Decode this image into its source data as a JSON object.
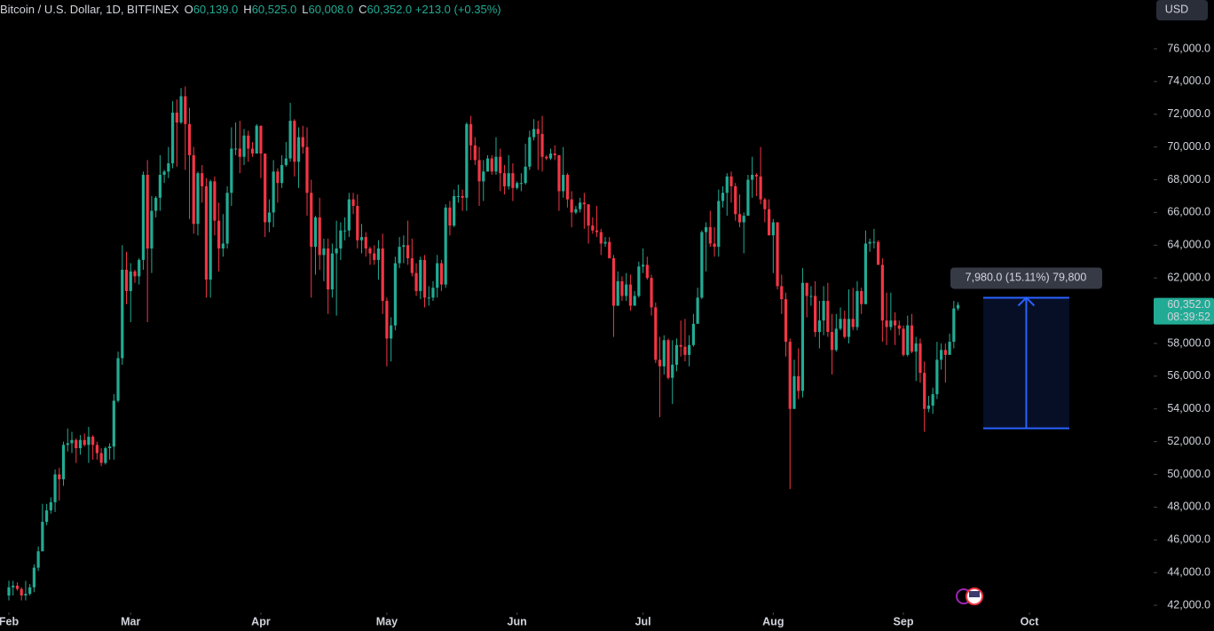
{
  "header": {
    "symbol": "Bitcoin / U.S. Dollar, 1D, BITFINEX",
    "fields": [
      {
        "key": "O",
        "value": "60,139.0"
      },
      {
        "key": "H",
        "value": "60,525.0"
      },
      {
        "key": "L",
        "value": "60,008.0"
      },
      {
        "key": "C",
        "value": "60,352.0"
      }
    ],
    "change": "+213.0 (+0.35%)",
    "currency": "USD"
  },
  "chart_data": {
    "type": "candlestick",
    "up_color": "#22ab94",
    "down_color": "#f23645",
    "ylim": [
      41570,
      78980
    ],
    "yticks": [
      {
        "value": 42000,
        "label": "42,000.0"
      },
      {
        "value": 44000,
        "label": "44,000.0"
      },
      {
        "value": 46000,
        "label": "46,000.0"
      },
      {
        "value": 48000,
        "label": "48,000.0"
      },
      {
        "value": 50000,
        "label": "50,000.0"
      },
      {
        "value": 52000,
        "label": "52,000.0"
      },
      {
        "value": 54000,
        "label": "54,000.0"
      },
      {
        "value": 56000,
        "label": "56,000.0"
      },
      {
        "value": 58000,
        "label": "58,000.0"
      },
      {
        "value": 60000,
        "label": "60,000.0"
      },
      {
        "value": 62000,
        "label": "62,000.0"
      },
      {
        "value": 64000,
        "label": "64,000.0"
      },
      {
        "value": 66000,
        "label": "66,000.0"
      },
      {
        "value": 68000,
        "label": "68,000.0"
      },
      {
        "value": 70000,
        "label": "70,000.0"
      },
      {
        "value": 72000,
        "label": "72,000.0"
      },
      {
        "value": 74000,
        "label": "74,000.0"
      },
      {
        "value": 76000,
        "label": "76,000.0"
      }
    ],
    "xlim": [
      0,
      243
    ],
    "xticks": [
      {
        "value": 0,
        "label": "Feb"
      },
      {
        "value": 29,
        "label": "Mar"
      },
      {
        "value": 60,
        "label": "Apr"
      },
      {
        "value": 90,
        "label": "May"
      },
      {
        "value": 121,
        "label": "Jun"
      },
      {
        "value": 151,
        "label": "Jul"
      },
      {
        "value": 182,
        "label": "Aug"
      },
      {
        "value": 213,
        "label": "Sep"
      },
      {
        "value": 243,
        "label": "Oct"
      }
    ],
    "last_price_label": "60,352.0",
    "countdown": "08:39:52",
    "range": {
      "from": 52813,
      "to": 60793,
      "start": 232,
      "end": 252.5,
      "label": "7,980.0 (15.11%) 79,800",
      "color": "#2962ff"
    },
    "ohlc": [
      [
        42600,
        43500,
        42300,
        43100
      ],
      [
        43100,
        43500,
        42600,
        43200
      ],
      [
        43200,
        43400,
        42900,
        43000
      ],
      [
        43000,
        43100,
        42300,
        42600
      ],
      [
        42600,
        43500,
        42300,
        42700
      ],
      [
        42700,
        43300,
        42600,
        43100
      ],
      [
        43100,
        44500,
        42800,
        44300
      ],
      [
        44300,
        45600,
        44100,
        45300
      ],
      [
        45300,
        48200,
        45300,
        47100
      ],
      [
        47100,
        48200,
        46900,
        47800
      ],
      [
        47800,
        48600,
        47600,
        48300
      ],
      [
        48300,
        50300,
        47700,
        50000
      ],
      [
        50000,
        50400,
        48400,
        49700
      ],
      [
        49700,
        52000,
        49300,
        51800
      ],
      [
        51800,
        52800,
        51400,
        51900
      ],
      [
        51900,
        52600,
        51300,
        52100
      ],
      [
        52100,
        52200,
        50700,
        51600
      ],
      [
        51600,
        52400,
        51200,
        52100
      ],
      [
        52100,
        52500,
        51700,
        51800
      ],
      [
        51800,
        52900,
        50700,
        52300
      ],
      [
        52300,
        52400,
        50900,
        51800
      ],
      [
        51800,
        52000,
        50900,
        51300
      ],
      [
        51300,
        51600,
        50500,
        50700
      ],
      [
        50700,
        51700,
        50600,
        51600
      ],
      [
        51600,
        51900,
        50900,
        51700
      ],
      [
        51700,
        54900,
        50900,
        54500
      ],
      [
        54500,
        57500,
        54400,
        57100
      ],
      [
        57100,
        64000,
        56700,
        62500
      ],
      [
        62500,
        63600,
        60400,
        61200
      ],
      [
        61200,
        62900,
        59300,
        62400
      ],
      [
        62400,
        62500,
        61700,
        62100
      ],
      [
        62100,
        63200,
        61600,
        63100
      ],
      [
        63100,
        68500,
        62500,
        68300
      ],
      [
        68300,
        69200,
        59300,
        63800
      ],
      [
        63800,
        67000,
        62300,
        66100
      ],
      [
        66100,
        67000,
        65700,
        66900
      ],
      [
        66900,
        69500,
        66100,
        68300
      ],
      [
        68300,
        68600,
        67800,
        68500
      ],
      [
        68500,
        70000,
        68100,
        69000
      ],
      [
        69000,
        72800,
        68700,
        72100
      ],
      [
        72100,
        72900,
        68800,
        71500
      ],
      [
        71500,
        73600,
        71400,
        73100
      ],
      [
        73100,
        73700,
        68600,
        71400
      ],
      [
        71400,
        72400,
        65600,
        69500
      ],
      [
        69500,
        70000,
        64700,
        65300
      ],
      [
        65300,
        68500,
        64600,
        68400
      ],
      [
        68400,
        68900,
        66600,
        67600
      ],
      [
        67600,
        68100,
        60800,
        61900
      ],
      [
        61900,
        68000,
        60800,
        67900
      ],
      [
        67900,
        68200,
        64600,
        65500
      ],
      [
        65500,
        66600,
        62400,
        63800
      ],
      [
        63800,
        65900,
        63300,
        64100
      ],
      [
        64100,
        67600,
        63800,
        67200
      ],
      [
        67200,
        71200,
        66400,
        69900
      ],
      [
        69900,
        71500,
        69500,
        69900
      ],
      [
        69900,
        71600,
        68400,
        69400
      ],
      [
        69400,
        71100,
        68900,
        70700
      ],
      [
        70700,
        71000,
        69100,
        69900
      ],
      [
        69900,
        70300,
        69400,
        69600
      ],
      [
        69600,
        71400,
        69600,
        71300
      ],
      [
        71300,
        71300,
        68100,
        69600
      ],
      [
        69600,
        69600,
        64500,
        65400
      ],
      [
        65400,
        66800,
        64800,
        66000
      ],
      [
        66000,
        69200,
        65100,
        68500
      ],
      [
        68500,
        68700,
        66600,
        67800
      ],
      [
        67800,
        69500,
        67500,
        68900
      ],
      [
        68900,
        70300,
        68800,
        69300
      ],
      [
        69300,
        72700,
        69100,
        71600
      ],
      [
        71600,
        71700,
        68200,
        69100
      ],
      [
        69100,
        71200,
        67500,
        70600
      ],
      [
        70600,
        71300,
        69600,
        70000
      ],
      [
        70000,
        71200,
        65800,
        67200
      ],
      [
        67200,
        68000,
        60800,
        63900
      ],
      [
        63900,
        65800,
        62200,
        65700
      ],
      [
        65700,
        66900,
        62500,
        63400
      ],
      [
        63400,
        64400,
        61800,
        63800
      ],
      [
        63800,
        64400,
        59800,
        61300
      ],
      [
        61300,
        64100,
        60800,
        63500
      ],
      [
        63500,
        65500,
        59700,
        63800
      ],
      [
        63800,
        65400,
        63100,
        64900
      ],
      [
        64900,
        65700,
        64300,
        64900
      ],
      [
        64900,
        67200,
        64500,
        66800
      ],
      [
        66800,
        67200,
        65900,
        66400
      ],
      [
        66400,
        67100,
        63800,
        64300
      ],
      [
        64300,
        65300,
        63500,
        64500
      ],
      [
        64500,
        64800,
        63300,
        63800
      ],
      [
        63800,
        63900,
        62800,
        63500
      ],
      [
        63500,
        64000,
        62800,
        63100
      ],
      [
        63100,
        64300,
        61900,
        63800
      ],
      [
        63800,
        64700,
        59800,
        60600
      ],
      [
        60600,
        60800,
        56600,
        58300
      ],
      [
        58300,
        59600,
        56900,
        59100
      ],
      [
        59100,
        63300,
        58800,
        62900
      ],
      [
        62900,
        64500,
        62600,
        63900
      ],
      [
        63900,
        64600,
        62900,
        64000
      ],
      [
        64000,
        65500,
        62800,
        63200
      ],
      [
        63200,
        64400,
        62100,
        62300
      ],
      [
        62300,
        62900,
        60900,
        61200
      ],
      [
        61200,
        63300,
        60700,
        63100
      ],
      [
        63100,
        63400,
        60200,
        60800
      ],
      [
        60800,
        61500,
        60300,
        60800
      ],
      [
        60800,
        61800,
        60600,
        61400
      ],
      [
        61400,
        63400,
        60800,
        62900
      ],
      [
        62900,
        63100,
        61200,
        61600
      ],
      [
        61600,
        66500,
        61400,
        66300
      ],
      [
        66300,
        66700,
        64600,
        65200
      ],
      [
        65200,
        67400,
        65100,
        67000
      ],
      [
        67000,
        67700,
        66600,
        67000
      ],
      [
        67000,
        67400,
        66100,
        66900
      ],
      [
        66900,
        71500,
        66100,
        71400
      ],
      [
        71400,
        71900,
        69200,
        70100
      ],
      [
        70100,
        70600,
        68900,
        69200
      ],
      [
        69200,
        70000,
        66400,
        67900
      ],
      [
        67900,
        69200,
        66700,
        68500
      ],
      [
        68500,
        69500,
        68500,
        69300
      ],
      [
        69300,
        69500,
        68300,
        68500
      ],
      [
        68500,
        70600,
        68300,
        69400
      ],
      [
        69400,
        69900,
        67300,
        68400
      ],
      [
        68400,
        68900,
        67100,
        67600
      ],
      [
        67600,
        69500,
        67400,
        68400
      ],
      [
        68400,
        69000,
        66700,
        67500
      ],
      [
        67500,
        67900,
        67400,
        67800
      ],
      [
        67800,
        68400,
        67300,
        67800
      ],
      [
        67800,
        70200,
        67700,
        68800
      ],
      [
        68800,
        71000,
        68600,
        70600
      ],
      [
        70600,
        71700,
        70400,
        71100
      ],
      [
        71100,
        71600,
        68600,
        70800
      ],
      [
        70800,
        71900,
        68500,
        69400
      ],
      [
        69400,
        69500,
        69200,
        69300
      ],
      [
        69300,
        69900,
        69200,
        69600
      ],
      [
        69600,
        70100,
        69200,
        69500
      ],
      [
        69500,
        69500,
        66100,
        67300
      ],
      [
        67300,
        70000,
        66900,
        68300
      ],
      [
        68300,
        68400,
        66300,
        66800
      ],
      [
        66800,
        67300,
        65100,
        66000
      ],
      [
        66000,
        66400,
        65900,
        66200
      ],
      [
        66200,
        66900,
        66000,
        66600
      ],
      [
        66600,
        67200,
        65000,
        66500
      ],
      [
        66500,
        66500,
        64100,
        65200
      ],
      [
        65200,
        65700,
        64700,
        64900
      ],
      [
        64900,
        66400,
        64500,
        64800
      ],
      [
        64800,
        65000,
        63400,
        64100
      ],
      [
        64100,
        64500,
        63900,
        64200
      ],
      [
        64200,
        64500,
        63200,
        63200
      ],
      [
        63200,
        63400,
        58400,
        60300
      ],
      [
        60300,
        62400,
        60300,
        61800
      ],
      [
        61800,
        62100,
        60600,
        60900
      ],
      [
        60900,
        62300,
        60600,
        61600
      ],
      [
        61600,
        62200,
        60000,
        60300
      ],
      [
        60300,
        61200,
        60300,
        60900
      ],
      [
        60900,
        63000,
        60800,
        62700
      ],
      [
        62700,
        63800,
        62300,
        62800
      ],
      [
        62800,
        63300,
        61900,
        62000
      ],
      [
        62000,
        62200,
        59700,
        60200
      ],
      [
        60200,
        60500,
        56800,
        57000
      ],
      [
        57000,
        58400,
        53500,
        56600
      ],
      [
        56600,
        58500,
        56100,
        58200
      ],
      [
        58200,
        58300,
        55800,
        55900
      ],
      [
        55900,
        58200,
        54300,
        56700
      ],
      [
        56700,
        58300,
        56300,
        57900
      ],
      [
        57900,
        59400,
        57200,
        57800
      ],
      [
        57800,
        59500,
        56900,
        57300
      ],
      [
        57300,
        58500,
        56600,
        57900
      ],
      [
        57900,
        59800,
        57800,
        59200
      ],
      [
        59200,
        61400,
        59200,
        60800
      ],
      [
        60800,
        64900,
        60700,
        64800
      ],
      [
        64800,
        65400,
        62400,
        65100
      ],
      [
        65100,
        66100,
        63900,
        64100
      ],
      [
        64100,
        65100,
        63300,
        63900
      ],
      [
        63900,
        67400,
        63300,
        66700
      ],
      [
        66700,
        67600,
        66300,
        67200
      ],
      [
        67200,
        68400,
        65800,
        68200
      ],
      [
        68200,
        68500,
        66600,
        67600
      ],
      [
        67600,
        67800,
        65500,
        65900
      ],
      [
        65900,
        67100,
        65100,
        65400
      ],
      [
        65400,
        66000,
        63500,
        65800
      ],
      [
        65800,
        68300,
        65800,
        68000
      ],
      [
        68000,
        69400,
        66900,
        68300
      ],
      [
        68300,
        68400,
        67000,
        68200
      ],
      [
        68200,
        70000,
        66500,
        66800
      ],
      [
        66800,
        66900,
        65400,
        66200
      ],
      [
        66200,
        66800,
        64600,
        64600
      ],
      [
        64600,
        65600,
        62300,
        65400
      ],
      [
        65400,
        65400,
        61300,
        61500
      ],
      [
        61500,
        62200,
        59800,
        60700
      ],
      [
        60700,
        61100,
        57200,
        58100
      ],
      [
        58100,
        58300,
        49100,
        54000
      ],
      [
        54000,
        57000,
        54000,
        56000
      ],
      [
        56000,
        57700,
        54600,
        55100
      ],
      [
        55100,
        62600,
        54700,
        61700
      ],
      [
        61700,
        61700,
        59600,
        60900
      ],
      [
        60900,
        61500,
        60300,
        60900
      ],
      [
        60900,
        61800,
        58400,
        58700
      ],
      [
        58700,
        60600,
        57700,
        59400
      ],
      [
        59400,
        61500,
        58500,
        60600
      ],
      [
        60600,
        61700,
        58400,
        58700
      ],
      [
        58700,
        59800,
        56100,
        57600
      ],
      [
        57600,
        59800,
        57500,
        58900
      ],
      [
        58900,
        60200,
        58800,
        59500
      ],
      [
        59500,
        60000,
        58300,
        58400
      ],
      [
        58400,
        61300,
        58000,
        59500
      ],
      [
        59500,
        61400,
        58800,
        59000
      ],
      [
        59000,
        61800,
        58800,
        61200
      ],
      [
        61200,
        61400,
        59800,
        60400
      ],
      [
        60400,
        64900,
        60400,
        64100
      ],
      [
        64100,
        64400,
        63600,
        64200
      ],
      [
        64200,
        65000,
        63800,
        64200
      ],
      [
        64200,
        64300,
        62800,
        62800
      ],
      [
        62800,
        63200,
        58100,
        59400
      ],
      [
        59400,
        61100,
        57900,
        59000
      ],
      [
        59000,
        61100,
        58800,
        59400
      ],
      [
        59400,
        59900,
        57900,
        59100
      ],
      [
        59100,
        59400,
        58500,
        58900
      ],
      [
        58900,
        59100,
        57200,
        57300
      ],
      [
        57300,
        59700,
        57200,
        59100
      ],
      [
        59100,
        59800,
        57400,
        57500
      ],
      [
        57500,
        58400,
        55700,
        58000
      ],
      [
        58000,
        58300,
        55600,
        56200
      ],
      [
        56200,
        56900,
        52600,
        54000
      ],
      [
        54000,
        54800,
        53800,
        54200
      ],
      [
        54200,
        55300,
        53700,
        54900
      ],
      [
        54900,
        58100,
        54600,
        57000
      ],
      [
        57000,
        58000,
        56400,
        57600
      ],
      [
        57600,
        58000,
        55600,
        57300
      ],
      [
        57300,
        58600,
        57300,
        58100
      ],
      [
        58100,
        60600,
        57700,
        60139
      ],
      [
        60139,
        60525,
        60008,
        60352
      ]
    ]
  }
}
